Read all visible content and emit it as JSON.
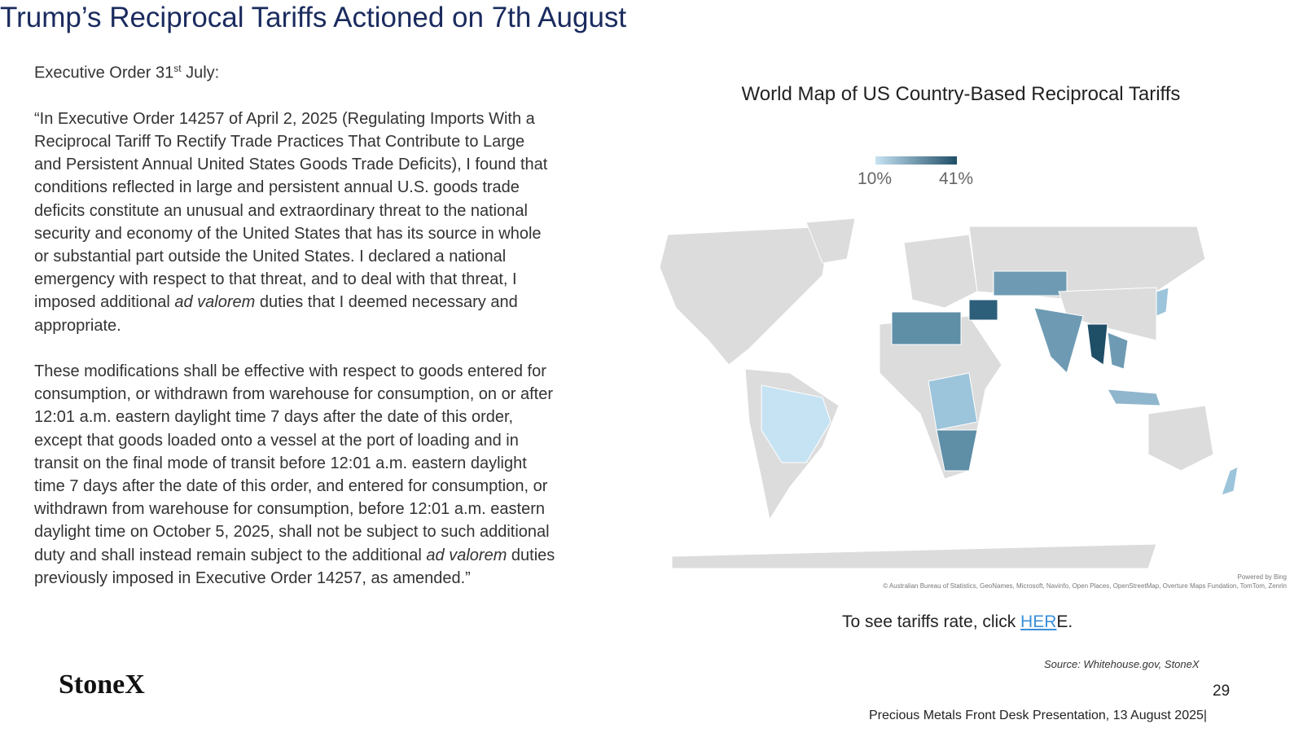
{
  "header": {
    "title": "Trump’s Reciprocal Tariffs Actioned on 7th August"
  },
  "body": {
    "intro": {
      "text": "Executive Order 31",
      "sup": "st",
      "end": " July:"
    },
    "quote_1": {
      "before": "“In Executive Order 14257 of April 2, 2025 (Regulating Imports With a Reciprocal Tariff To Rectify Trade Practices That Contribute to Large and Persistent Annual United States Goods Trade Deficits), I found that conditions reflected in large and persistent annual U.S. goods trade deficits constitute an unusual and extraordinary threat to the national security and economy of the United States that has its source in whole or substantial part outside the United States.  I declared a national emergency with respect to that threat, and to deal with that threat, I imposed additional ",
      "italic": "ad valorem",
      "after": " duties that I deemed necessary and appropriate."
    },
    "quote_2": {
      "before": "These modifications shall be effective with respect to goods entered for consumption, or withdrawn from warehouse for consumption, on or after 12:01 a.m. eastern daylight time 7 days after the date of this order, except that goods loaded onto a vessel at the port of loading and in transit on the final mode of transit before 12:01 a.m. eastern daylight time 7 days after the date of this order, and entered for consumption, or withdrawn from warehouse for consumption, before 12:01 a.m. eastern daylight time on October 5, 2025, shall not be subject to such additional duty and shall instead remain subject to the additional ",
      "italic": "ad valorem",
      "after": " duties previously imposed in Executive Order 14257, as amended.”"
    }
  },
  "map": {
    "title": "World Map of US Country-Based Reciprocal Tariffs",
    "legend_min": "10%",
    "legend_max": "41%",
    "powered_by": "Powered by Bing",
    "credits": "© Australian Bureau of Statistics, GeoNames, Microsoft, Navinfo, Open Places, OpenStreetMap, Overture Maps Fundation, TomTom, Zenrin"
  },
  "link": {
    "before": "To see tariffs rate, click ",
    "link_text": "HER",
    "after": "E."
  },
  "source": "Source: Whitehouse.gov, StoneX",
  "footer": {
    "logo": "StoneX",
    "page": "29",
    "text": "Precious Metals Front Desk Presentation, 13 August 2025|"
  }
}
